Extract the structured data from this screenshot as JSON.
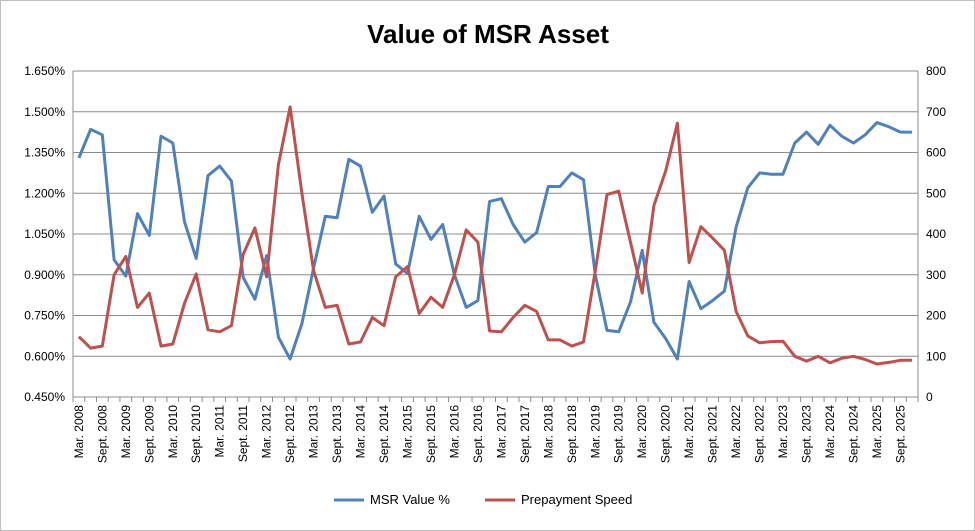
{
  "chart_data": {
    "type": "line",
    "title": "Value of MSR Asset",
    "xlabel": "",
    "ylabel": "",
    "y2label": "",
    "grid": true,
    "legend_position": "bottom",
    "ylim": [
      0.45,
      1.65
    ],
    "yticks": [
      "1.650%",
      "1.500%",
      "1.350%",
      "1.200%",
      "1.050%",
      "0.900%",
      "0.750%",
      "0.600%",
      "0.450%"
    ],
    "y2lim": [
      0,
      800
    ],
    "y2ticks": [
      "800",
      "700",
      "600",
      "500",
      "400",
      "300",
      "200",
      "100",
      "0"
    ],
    "x_tick_labels": [
      "Mar. 2008",
      "Sept. 2008",
      "Mar. 2009",
      "Sept. 2009",
      "Mar. 2010",
      "Sept. 2010",
      "Mar. 2011",
      "Sept. 2011",
      "Mar. 2012",
      "Sept. 2012",
      "Mar. 2013",
      "Sept. 2013",
      "Mar. 2014",
      "Sept. 2014",
      "Mar. 2015",
      "Sept. 2015",
      "Mar. 2016",
      "Sept. 2016",
      "Mar. 2017",
      "Sept. 2017",
      "Mar. 2018",
      "Sept. 2018",
      "Mar. 2019",
      "Sept. 2019",
      "Mar. 2020",
      "Sept. 2020",
      "Mar. 2021",
      "Sept. 2021",
      "Mar. 2022",
      "Sept. 2022",
      "Mar. 2023",
      "Sept. 2023",
      "Mar. 2024",
      "Sept. 2024",
      "Mar. 2025",
      "Sept. 2025"
    ],
    "x": [
      "Mar. 2008",
      "Jun. 2008",
      "Sept. 2008",
      "Dec. 2008",
      "Mar. 2009",
      "Jun. 2009",
      "Sept. 2009",
      "Dec. 2009",
      "Mar. 2010",
      "Jun. 2010",
      "Sept. 2010",
      "Dec. 2010",
      "Mar. 2011",
      "Jun. 2011",
      "Sept. 2011",
      "Dec. 2011",
      "Mar. 2012",
      "Jun. 2012",
      "Sept. 2012",
      "Dec. 2012",
      "Mar. 2013",
      "Jun. 2013",
      "Sept. 2013",
      "Dec. 2013",
      "Mar. 2014",
      "Jun. 2014",
      "Sept. 2014",
      "Dec. 2014",
      "Mar. 2015",
      "Jun. 2015",
      "Sept. 2015",
      "Dec. 2015",
      "Mar. 2016",
      "Jun. 2016",
      "Sept. 2016",
      "Dec. 2016",
      "Mar. 2017",
      "Jun. 2017",
      "Sept. 2017",
      "Dec. 2017",
      "Mar. 2018",
      "Jun. 2018",
      "Sept. 2018",
      "Dec. 2018",
      "Mar. 2019",
      "Jun. 2019",
      "Sept. 2019",
      "Dec. 2019",
      "Mar. 2020",
      "Jun. 2020",
      "Sept. 2020",
      "Dec. 2020",
      "Mar. 2021",
      "Jun. 2021",
      "Sept. 2021",
      "Dec. 2021",
      "Mar. 2022",
      "Jun. 2022",
      "Sept. 2022",
      "Dec. 2022",
      "Mar. 2023",
      "Jun. 2023",
      "Sept. 2023",
      "Dec. 2023",
      "Mar. 2024",
      "Jun. 2024",
      "Sept. 2024",
      "Dec. 2024",
      "Mar. 2025",
      "Jun. 2025",
      "Sept. 2025",
      "Dec. 2025"
    ],
    "series": [
      {
        "name": "MSR Value %",
        "axis": "left",
        "color": "#4f81bd",
        "values": [
          1.33,
          1.435,
          1.415,
          0.955,
          0.895,
          1.125,
          1.045,
          1.41,
          1.385,
          1.095,
          0.96,
          1.265,
          1.3,
          1.245,
          0.89,
          0.81,
          0.97,
          0.67,
          0.59,
          0.72,
          0.925,
          1.115,
          1.11,
          1.325,
          1.3,
          1.13,
          1.19,
          0.94,
          0.905,
          1.115,
          1.03,
          1.085,
          0.9,
          0.78,
          0.805,
          1.17,
          1.18,
          1.085,
          1.02,
          1.055,
          1.225,
          1.225,
          1.275,
          1.25,
          0.9,
          0.695,
          0.69,
          0.8,
          0.99,
          0.725,
          0.665,
          0.59,
          0.875,
          0.775,
          0.805,
          0.84,
          1.075,
          1.22,
          1.275,
          1.27,
          1.27,
          1.385,
          1.425,
          1.38,
          1.45,
          1.41,
          1.385,
          1.415,
          1.46,
          1.445,
          1.425,
          1.425
        ]
      },
      {
        "name": "Prepayment Speed",
        "axis": "right",
        "color": "#c0504d",
        "values": [
          148,
          120,
          125,
          300,
          345,
          220,
          255,
          125,
          130,
          230,
          302,
          165,
          160,
          175,
          350,
          415,
          295,
          570,
          712,
          500,
          310,
          220,
          225,
          130,
          135,
          195,
          175,
          295,
          320,
          205,
          245,
          220,
          300,
          410,
          380,
          162,
          160,
          195,
          225,
          210,
          140,
          140,
          125,
          135,
          310,
          497,
          505,
          380,
          255,
          470,
          555,
          672,
          330,
          418,
          390,
          360,
          210,
          150,
          133,
          136,
          137,
          100,
          88,
          100,
          84,
          95,
          100,
          92,
          81,
          85,
          90,
          90
        ]
      }
    ]
  }
}
